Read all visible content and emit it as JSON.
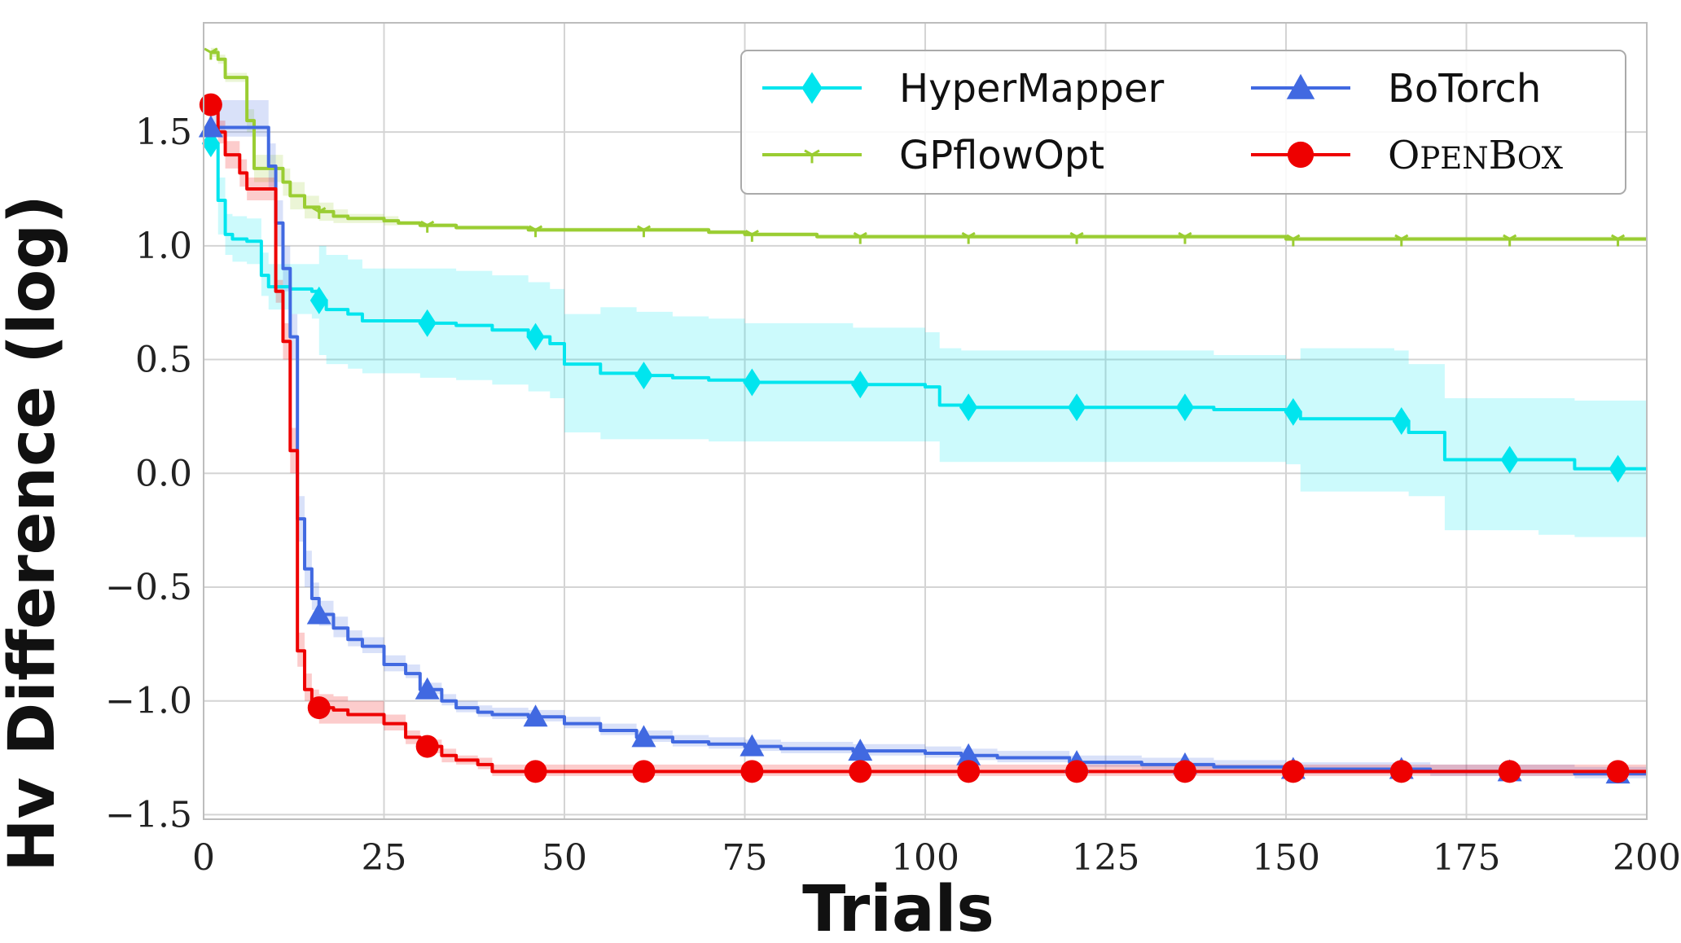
{
  "chart_data": {
    "type": "line",
    "title": "",
    "xlabel": "Trials",
    "ylabel": "Hv Difference (log)",
    "xlim": [
      0,
      200
    ],
    "ylim": [
      -1.52,
      1.98
    ],
    "xticks": [
      0,
      25,
      50,
      75,
      100,
      125,
      150,
      175,
      200
    ],
    "xtick_labels": [
      "0",
      "25",
      "50",
      "75",
      "100",
      "125",
      "150",
      "175",
      "200"
    ],
    "yticks": [
      -1.5,
      -1.0,
      -0.5,
      0.0,
      0.5,
      1.0,
      1.5
    ],
    "ytick_labels": [
      "−1.5",
      "−1.0",
      "−0.5",
      "0.0",
      "0.5",
      "1.0",
      "1.5"
    ],
    "grid": true,
    "legend_position": "top-right",
    "series": [
      {
        "name": "HyperMapper",
        "color": "#00e5ee",
        "marker": "diamond",
        "x": [
          1,
          2,
          3,
          4,
          6,
          8,
          9,
          12,
          15,
          16,
          17,
          20,
          22,
          30,
          35,
          40,
          45,
          48,
          50,
          55,
          60,
          65,
          70,
          75,
          80,
          90,
          100,
          102,
          105,
          110,
          120,
          130,
          135,
          140,
          150,
          152,
          155,
          165,
          167,
          170,
          172,
          180,
          185,
          190,
          195,
          200
        ],
        "y": [
          1.45,
          1.2,
          1.05,
          1.03,
          1.02,
          0.87,
          0.82,
          0.81,
          0.8,
          0.76,
          0.72,
          0.7,
          0.67,
          0.66,
          0.65,
          0.63,
          0.6,
          0.57,
          0.48,
          0.44,
          0.43,
          0.42,
          0.41,
          0.4,
          0.4,
          0.39,
          0.38,
          0.3,
          0.29,
          0.29,
          0.29,
          0.29,
          0.29,
          0.28,
          0.27,
          0.24,
          0.24,
          0.23,
          0.18,
          0.18,
          0.06,
          0.06,
          0.06,
          0.02,
          0.02,
          0.02
        ],
        "lower": [
          1.45,
          1.05,
          0.96,
          0.93,
          0.92,
          0.78,
          0.72,
          0.7,
          0.68,
          0.52,
          0.48,
          0.46,
          0.44,
          0.42,
          0.41,
          0.39,
          0.36,
          0.33,
          0.18,
          0.15,
          0.15,
          0.15,
          0.14,
          0.14,
          0.14,
          0.14,
          0.14,
          0.05,
          0.05,
          0.05,
          0.05,
          0.05,
          0.05,
          0.05,
          0.04,
          -0.08,
          -0.08,
          -0.08,
          -0.1,
          -0.1,
          -0.25,
          -0.25,
          -0.27,
          -0.28,
          -0.28,
          -0.28
        ],
        "upper": [
          1.45,
          1.3,
          1.14,
          1.13,
          1.12,
          0.97,
          0.92,
          0.92,
          0.92,
          1.0,
          0.96,
          0.94,
          0.9,
          0.9,
          0.89,
          0.87,
          0.84,
          0.81,
          0.7,
          0.73,
          0.71,
          0.69,
          0.68,
          0.66,
          0.66,
          0.64,
          0.62,
          0.55,
          0.54,
          0.54,
          0.54,
          0.54,
          0.54,
          0.52,
          0.5,
          0.55,
          0.55,
          0.54,
          0.48,
          0.48,
          0.33,
          0.33,
          0.33,
          0.32,
          0.32,
          0.32
        ],
        "marker_x": [
          1,
          16,
          31,
          46,
          61,
          76,
          91,
          106,
          121,
          136,
          151,
          166,
          181,
          196
        ]
      },
      {
        "name": "GPflowOpt",
        "color": "#9acd32",
        "marker": "tri_down",
        "x": [
          1,
          2,
          3,
          5,
          6,
          7,
          10,
          11,
          12,
          14,
          16,
          18,
          20,
          25,
          27,
          30,
          35,
          40,
          45,
          50,
          60,
          70,
          75,
          80,
          85,
          90,
          100,
          120,
          150,
          200
        ],
        "y": [
          1.85,
          1.82,
          1.74,
          1.74,
          1.55,
          1.34,
          1.34,
          1.28,
          1.22,
          1.17,
          1.15,
          1.13,
          1.12,
          1.11,
          1.1,
          1.09,
          1.08,
          1.08,
          1.07,
          1.07,
          1.07,
          1.06,
          1.05,
          1.05,
          1.04,
          1.04,
          1.04,
          1.04,
          1.03,
          1.03
        ],
        "lower": [
          1.83,
          1.8,
          1.72,
          1.72,
          1.5,
          1.28,
          1.28,
          1.22,
          1.16,
          1.12,
          1.11,
          1.1,
          1.1,
          1.09,
          1.09,
          1.08,
          1.07,
          1.07,
          1.06,
          1.06,
          1.06,
          1.05,
          1.04,
          1.04,
          1.03,
          1.03,
          1.03,
          1.03,
          1.02,
          1.02
        ],
        "upper": [
          1.87,
          1.84,
          1.76,
          1.76,
          1.6,
          1.4,
          1.4,
          1.34,
          1.28,
          1.22,
          1.19,
          1.16,
          1.14,
          1.13,
          1.11,
          1.1,
          1.09,
          1.09,
          1.08,
          1.08,
          1.08,
          1.07,
          1.06,
          1.06,
          1.05,
          1.05,
          1.05,
          1.05,
          1.04,
          1.04
        ],
        "marker_x": [
          1,
          16,
          31,
          46,
          61,
          76,
          91,
          106,
          121,
          136,
          151,
          166,
          181,
          196
        ]
      },
      {
        "name": "BoTorch",
        "color": "#4169e1",
        "marker": "triangle",
        "x": [
          1,
          2,
          5,
          8,
          9,
          10,
          11,
          12,
          13,
          14,
          15,
          16,
          18,
          20,
          22,
          25,
          28,
          30,
          33,
          35,
          38,
          40,
          45,
          50,
          55,
          60,
          65,
          70,
          75,
          80,
          90,
          100,
          105,
          110,
          120,
          130,
          140,
          150,
          160,
          170,
          180,
          190,
          200
        ],
        "y": [
          1.52,
          1.52,
          1.52,
          1.52,
          1.35,
          1.1,
          0.9,
          0.6,
          -0.2,
          -0.42,
          -0.55,
          -0.62,
          -0.68,
          -0.73,
          -0.76,
          -0.84,
          -0.88,
          -0.95,
          -1.0,
          -1.03,
          -1.05,
          -1.06,
          -1.07,
          -1.1,
          -1.13,
          -1.16,
          -1.18,
          -1.19,
          -1.2,
          -1.21,
          -1.22,
          -1.23,
          -1.24,
          -1.25,
          -1.27,
          -1.28,
          -1.29,
          -1.3,
          -1.3,
          -1.31,
          -1.31,
          -1.32,
          -1.32
        ],
        "lower": [
          1.48,
          1.48,
          1.48,
          1.48,
          1.25,
          1.0,
          0.8,
          0.5,
          -0.3,
          -0.5,
          -0.6,
          -0.67,
          -0.72,
          -0.76,
          -0.79,
          -0.87,
          -0.9,
          -0.97,
          -1.02,
          -1.05,
          -1.07,
          -1.08,
          -1.09,
          -1.12,
          -1.15,
          -1.18,
          -1.2,
          -1.21,
          -1.22,
          -1.23,
          -1.24,
          -1.25,
          -1.26,
          -1.27,
          -1.29,
          -1.3,
          -1.31,
          -1.32,
          -1.32,
          -1.33,
          -1.33,
          -1.34,
          -1.34
        ],
        "upper": [
          1.64,
          1.64,
          1.64,
          1.64,
          1.45,
          1.2,
          1.0,
          0.7,
          -0.1,
          -0.34,
          -0.48,
          -0.56,
          -0.63,
          -0.69,
          -0.72,
          -0.8,
          -0.84,
          -0.92,
          -0.97,
          -1.0,
          -1.02,
          -1.03,
          -1.04,
          -1.07,
          -1.1,
          -1.13,
          -1.15,
          -1.16,
          -1.17,
          -1.18,
          -1.19,
          -1.2,
          -1.21,
          -1.22,
          -1.24,
          -1.25,
          -1.26,
          -1.27,
          -1.27,
          -1.28,
          -1.28,
          -1.29,
          -1.29
        ],
        "marker_x": [
          1,
          16,
          31,
          46,
          61,
          76,
          91,
          106,
          121,
          136,
          151,
          166,
          181,
          196
        ]
      },
      {
        "name": "OpenBox",
        "color": "#ee0000",
        "marker": "circle",
        "x": [
          1,
          2,
          3,
          5,
          6,
          8,
          10,
          11,
          12,
          13,
          14,
          15,
          16,
          18,
          20,
          24,
          25,
          28,
          30,
          33,
          35,
          38,
          40,
          45,
          50,
          100,
          150,
          200
        ],
        "y": [
          1.62,
          1.5,
          1.4,
          1.32,
          1.25,
          1.25,
          0.8,
          0.58,
          0.1,
          -0.78,
          -0.95,
          -1.0,
          -1.03,
          -1.04,
          -1.06,
          -1.06,
          -1.1,
          -1.16,
          -1.2,
          -1.24,
          -1.26,
          -1.28,
          -1.31,
          -1.31,
          -1.31,
          -1.31,
          -1.31,
          -1.31
        ],
        "lower": [
          1.6,
          1.45,
          1.34,
          1.26,
          1.2,
          1.2,
          0.75,
          0.5,
          0.0,
          -0.85,
          -1.0,
          -1.05,
          -1.1,
          -1.1,
          -1.1,
          -1.1,
          -1.13,
          -1.19,
          -1.23,
          -1.27,
          -1.28,
          -1.3,
          -1.33,
          -1.33,
          -1.33,
          -1.33,
          -1.33,
          -1.33
        ],
        "upper": [
          1.64,
          1.55,
          1.46,
          1.38,
          1.3,
          1.3,
          0.85,
          0.66,
          0.2,
          -0.7,
          -0.88,
          -0.95,
          -0.97,
          -0.98,
          -1.0,
          -1.0,
          -1.06,
          -1.13,
          -1.17,
          -1.21,
          -1.24,
          -1.25,
          -1.28,
          -1.28,
          -1.28,
          -1.28,
          -1.28,
          -1.28
        ],
        "marker_x": [
          1,
          16,
          31,
          46,
          61,
          76,
          91,
          106,
          121,
          136,
          151,
          166,
          181,
          196
        ]
      }
    ]
  }
}
